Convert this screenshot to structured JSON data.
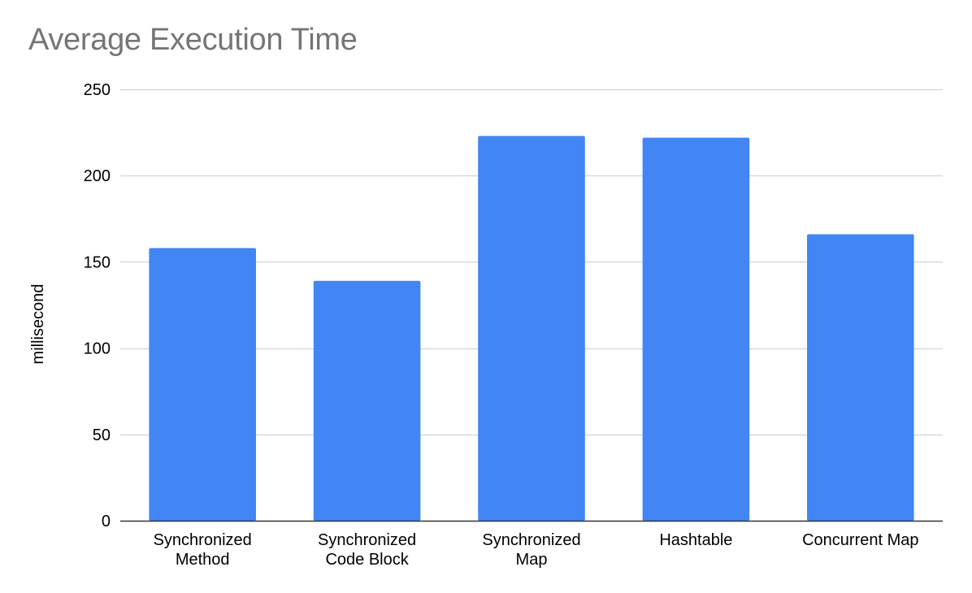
{
  "chart_data": {
    "type": "bar",
    "title": "Average Execution Time",
    "xlabel": "",
    "ylabel": "millisecond",
    "categories": [
      [
        "Synchronized",
        "Method"
      ],
      [
        "Synchronized",
        "Code Block"
      ],
      [
        "Synchronized",
        "Map"
      ],
      [
        "Hashtable"
      ],
      [
        "Concurrent Map"
      ]
    ],
    "values": [
      158,
      139,
      223,
      222,
      166
    ],
    "ylim": [
      0,
      250
    ],
    "yticks": [
      0,
      50,
      100,
      150,
      200,
      250
    ],
    "grid": true,
    "legend": "none",
    "colors": {
      "bar": "#4285f4",
      "grid": "#cccccc",
      "axis": "#333333",
      "title": "#757575"
    }
  }
}
